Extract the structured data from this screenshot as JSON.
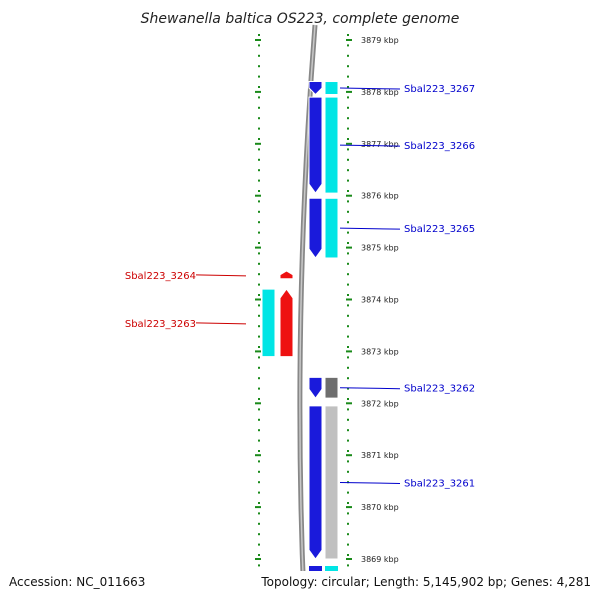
{
  "title": "Shewanella baltica OS223, complete genome",
  "footer": {
    "accession": "Accession: NC_011663",
    "topology": "Topology: circular; Length: 5,145,902 bp; Genes: 4,281"
  },
  "ruler_ticks_kbp": [
    {
      "label": "3879 kbp",
      "kbp": 3879
    },
    {
      "label": "3878 kbp",
      "kbp": 3878
    },
    {
      "label": "3877 kbp",
      "kbp": 3877
    },
    {
      "label": "3876 kbp",
      "kbp": 3876
    },
    {
      "label": "3875 kbp",
      "kbp": 3875
    },
    {
      "label": "3874 kbp",
      "kbp": 3874
    },
    {
      "label": "3873 kbp",
      "kbp": 3873
    },
    {
      "label": "3872 kbp",
      "kbp": 3872
    },
    {
      "label": "3871 kbp",
      "kbp": 3871
    },
    {
      "label": "3870 kbp",
      "kbp": 3870
    },
    {
      "label": "3869 kbp",
      "kbp": 3869
    }
  ],
  "genes": [
    {
      "name": "Sbal223_3267",
      "strand": "reverse",
      "start_kbp": 3877.95,
      "end_kbp": 3878.2,
      "color": "#1a1adb",
      "feature_color": "#00e5e5"
    },
    {
      "name": "Sbal223_3266",
      "strand": "reverse",
      "start_kbp": 3876.05,
      "end_kbp": 3877.9,
      "color": "#1a1adb",
      "feature_color": "#00e5e5"
    },
    {
      "name": "Sbal223_3265",
      "strand": "reverse",
      "start_kbp": 3874.8,
      "end_kbp": 3875.95,
      "color": "#1a1adb",
      "feature_color": "#00e5e5"
    },
    {
      "name": "Sbal223_3264",
      "strand": "forward",
      "start_kbp": 3874.4,
      "end_kbp": 3874.55,
      "color": "#ee1111",
      "feature_color": null
    },
    {
      "name": "Sbal223_3263",
      "strand": "forward",
      "start_kbp": 3872.9,
      "end_kbp": 3874.2,
      "color": "#ee1111",
      "feature_color": "#00e5e5"
    },
    {
      "name": "Sbal223_3262",
      "strand": "reverse",
      "start_kbp": 3872.1,
      "end_kbp": 3872.5,
      "color": "#1a1adb",
      "feature_color": "#6e6e6e"
    },
    {
      "name": "Sbal223_3261",
      "strand": "reverse",
      "start_kbp": 3869.0,
      "end_kbp": 3871.95,
      "color": "#1a1adb",
      "feature_color": "#c0c0c0"
    }
  ],
  "colors": {
    "forward_gene": "#ee1111",
    "reverse_gene": "#1a1adb",
    "cds_feature": "#00e5e5",
    "backbone": "#888888",
    "ruler_ticks": "#1a8a1a",
    "forward_label": "#cc0000",
    "reverse_label": "#0000cc"
  }
}
